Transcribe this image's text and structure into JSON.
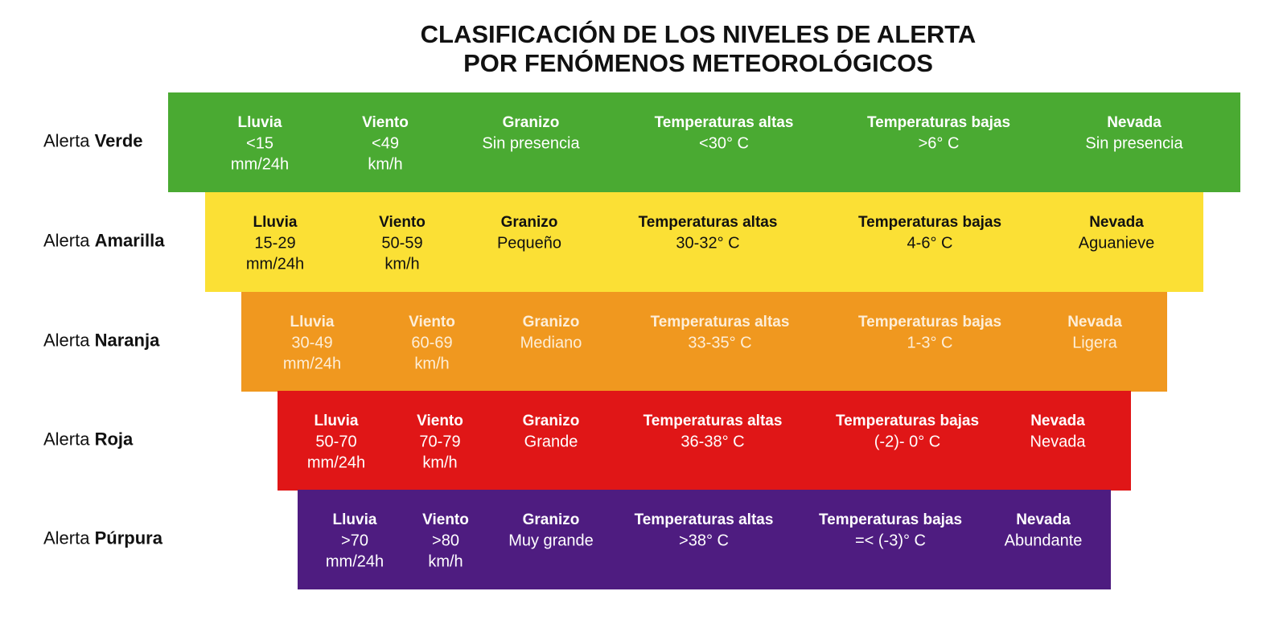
{
  "title": [
    "CLASIFICACIÓN DE LOS NIVELES DE ALERTA",
    "POR FENÓMENOS METEOROLÓGICOS"
  ],
  "rows": [
    {
      "prefix": "Alerta",
      "name": "Verde",
      "cells": [
        {
          "header": "Lluvia",
          "lines": [
            "<15",
            "mm/24h"
          ]
        },
        {
          "header": "Viento",
          "lines": [
            "<49",
            "km/h"
          ]
        },
        {
          "header": "Granizo",
          "lines": [
            "Sin presencia"
          ]
        },
        {
          "header": "Temperaturas altas",
          "lines": [
            "<30° C"
          ]
        },
        {
          "header": "Temperaturas bajas",
          "lines": [
            ">6° C"
          ]
        },
        {
          "header": "Nevada",
          "lines": [
            "Sin presencia"
          ]
        }
      ]
    },
    {
      "prefix": "Alerta",
      "name": "Amarilla",
      "cells": [
        {
          "header": "Lluvia",
          "lines": [
            "15-29",
            "mm/24h"
          ]
        },
        {
          "header": "Viento",
          "lines": [
            "50-59",
            "km/h"
          ]
        },
        {
          "header": "Granizo",
          "lines": [
            "Pequeño"
          ]
        },
        {
          "header": "Temperaturas altas",
          "lines": [
            "30-32° C"
          ]
        },
        {
          "header": "Temperaturas bajas",
          "lines": [
            "4-6° C"
          ]
        },
        {
          "header": "Nevada",
          "lines": [
            "Aguanieve"
          ]
        }
      ]
    },
    {
      "prefix": "Alerta",
      "name": "Naranja",
      "cells": [
        {
          "header": "Lluvia",
          "lines": [
            "30-49",
            "mm/24h"
          ]
        },
        {
          "header": "Viento",
          "lines": [
            "60-69",
            "km/h"
          ]
        },
        {
          "header": "Granizo",
          "lines": [
            "Mediano"
          ]
        },
        {
          "header": "Temperaturas altas",
          "lines": [
            "33-35° C"
          ]
        },
        {
          "header": "Temperaturas bajas",
          "lines": [
            "1-3° C"
          ]
        },
        {
          "header": "Nevada",
          "lines": [
            "Ligera"
          ]
        }
      ]
    },
    {
      "prefix": "Alerta",
      "name": "Roja",
      "cells": [
        {
          "header": "Lluvia",
          "lines": [
            "50-70",
            "mm/24h"
          ]
        },
        {
          "header": "Viento",
          "lines": [
            "70-79",
            "km/h"
          ]
        },
        {
          "header": "Granizo",
          "lines": [
            "Grande"
          ]
        },
        {
          "header": "Temperaturas altas",
          "lines": [
            "36-38° C"
          ]
        },
        {
          "header": "Temperaturas bajas",
          "lines": [
            "(-2)- 0° C"
          ]
        },
        {
          "header": "Nevada",
          "lines": [
            "Nevada"
          ]
        }
      ]
    },
    {
      "prefix": "Alerta",
      "name": "Púrpura",
      "cells": [
        {
          "header": "Lluvia",
          "lines": [
            ">70",
            "mm/24h"
          ]
        },
        {
          "header": "Viento",
          "lines": [
            ">80",
            "km/h"
          ]
        },
        {
          "header": "Granizo",
          "lines": [
            "Muy grande"
          ]
        },
        {
          "header": "Temperaturas altas",
          "lines": [
            ">38° C"
          ]
        },
        {
          "header": "Temperaturas bajas",
          "lines": [
            "=< (-3)° C"
          ]
        },
        {
          "header": "Nevada",
          "lines": [
            "Abundante"
          ]
        }
      ]
    }
  ]
}
